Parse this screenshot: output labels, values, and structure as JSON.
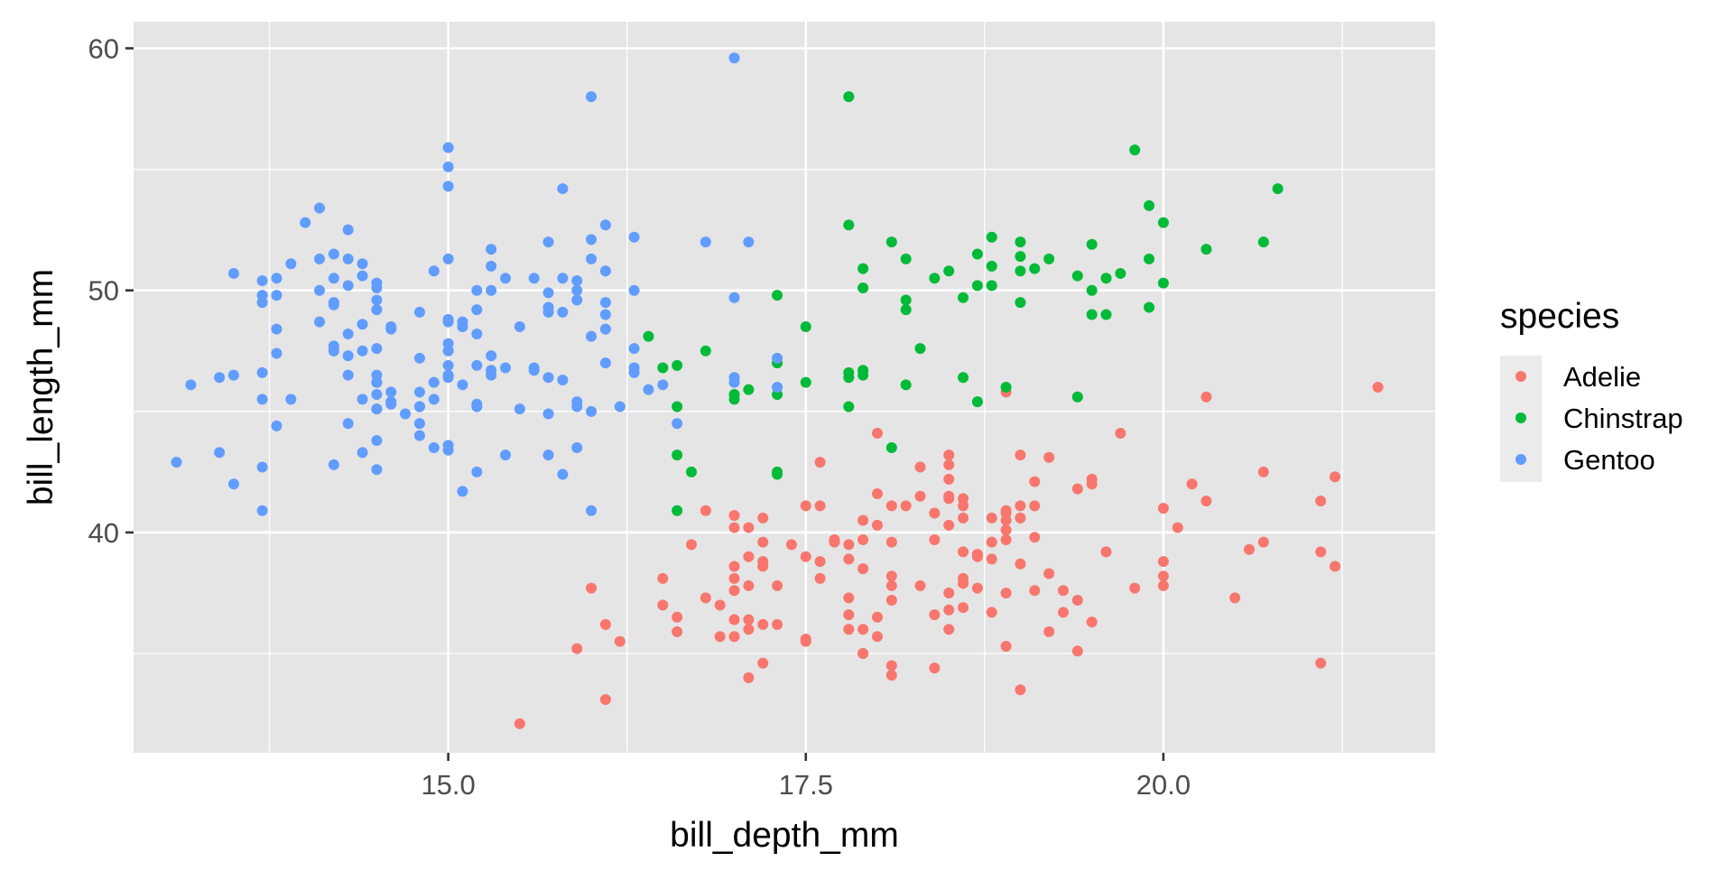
{
  "chart_data": {
    "type": "scatter",
    "title": "",
    "xlabel": "bill_depth_mm",
    "ylabel": "bill_length_mm",
    "xlim": [
      12.8,
      21.9
    ],
    "ylim": [
      30.9,
      61.1
    ],
    "x_ticks": [
      15.0,
      17.5,
      20.0
    ],
    "x_tick_labels": [
      "15.0",
      "17.5",
      "20.0"
    ],
    "y_ticks": [
      40,
      50,
      60
    ],
    "y_tick_labels": [
      "40",
      "50",
      "60"
    ],
    "grid": true,
    "panel_background": "#e5e5e5",
    "legend": {
      "title": "species",
      "position": "right"
    },
    "series": [
      {
        "name": "Adelie",
        "color": "#f8766d",
        "x": [
          18.7,
          17.4,
          18.0,
          19.3,
          20.6,
          17.8,
          19.6,
          18.1,
          20.2,
          17.1,
          17.3,
          17.6,
          21.2,
          21.1,
          17.8,
          19.0,
          20.7,
          18.4,
          21.5,
          18.3,
          18.7,
          19.2,
          18.1,
          17.2,
          18.9,
          18.6,
          17.9,
          18.6,
          18.9,
          16.7,
          18.1,
          17.8,
          18.9,
          17.0,
          21.1,
          20.0,
          18.5,
          19.3,
          19.1,
          18.0,
          18.4,
          18.5,
          19.7,
          16.9,
          18.8,
          19.0,
          18.9,
          17.9,
          21.2,
          17.7,
          18.9,
          17.9,
          19.5,
          18.1,
          18.6,
          17.5,
          18.8,
          16.6,
          19.1,
          16.9,
          21.1,
          17.0,
          18.2,
          17.1,
          18.0,
          16.2,
          19.1,
          16.6,
          19.4,
          19.0,
          18.4,
          17.2,
          18.9,
          17.5,
          18.5,
          16.8,
          19.4,
          16.1,
          19.1,
          17.2,
          17.6,
          18.8,
          19.4,
          17.8,
          20.3,
          19.5,
          18.6,
          19.2,
          18.8,
          18.0,
          18.1,
          17.1,
          18.1,
          17.3,
          18.9,
          18.6,
          18.5,
          16.1,
          18.5,
          17.9,
          20.0,
          16.0,
          20.0,
          18.6,
          18.9,
          17.2,
          20.0,
          17.0,
          19.0,
          16.5,
          20.3,
          17.7,
          19.5,
          20.7,
          18.3,
          17.0,
          20.5,
          17.0,
          18.6,
          17.2,
          19.8,
          17.0,
          18.5,
          15.9,
          19.0,
          17.6,
          18.3,
          17.1,
          18.0,
          17.9,
          19.2,
          18.5,
          18.5,
          17.6,
          17.5,
          17.5,
          20.1,
          16.5,
          17.9,
          17.1,
          17.2,
          15.5,
          17.0,
          16.8,
          18.7,
          18.6,
          18.4,
          17.8,
          18.1,
          17.1,
          18.5
        ],
        "y": [
          39.1,
          39.5,
          40.3,
          36.7,
          39.3,
          38.9,
          39.2,
          34.1,
          42.0,
          37.8,
          37.8,
          41.1,
          38.6,
          34.6,
          36.6,
          38.7,
          42.5,
          34.4,
          46.0,
          37.8,
          37.7,
          35.9,
          38.2,
          38.8,
          35.3,
          40.6,
          40.5,
          37.9,
          40.5,
          39.5,
          37.2,
          39.5,
          40.9,
          36.4,
          39.2,
          38.8,
          42.2,
          37.6,
          39.8,
          36.5,
          40.8,
          36.0,
          44.1,
          37.0,
          39.6,
          41.1,
          37.5,
          36.0,
          42.3,
          39.6,
          40.1,
          35.0,
          42.0,
          34.5,
          41.4,
          39.0,
          40.6,
          36.5,
          37.6,
          35.7,
          41.3,
          37.6,
          41.1,
          36.4,
          41.6,
          35.5,
          41.1,
          35.9,
          41.8,
          33.5,
          39.7,
          39.6,
          45.8,
          35.5,
          42.8,
          40.9,
          37.2,
          36.2,
          42.1,
          34.6,
          42.9,
          36.7,
          35.1,
          37.3,
          41.3,
          36.3,
          36.9,
          38.3,
          38.9,
          35.7,
          41.1,
          34.0,
          39.6,
          36.2,
          40.8,
          38.1,
          40.3,
          33.1,
          43.2,
          35.0,
          41.0,
          37.7,
          37.8,
          37.9,
          39.7,
          38.6,
          38.2,
          38.1,
          43.2,
          38.1,
          45.6,
          39.7,
          42.2,
          39.6,
          42.7,
          38.6,
          37.3,
          35.7,
          41.1,
          36.2,
          37.7,
          40.2,
          41.4,
          35.2,
          40.6,
          38.8,
          41.5,
          39.0,
          44.1,
          38.5,
          43.1,
          36.8,
          37.5,
          38.1,
          41.1,
          35.6,
          40.2,
          37.0,
          39.7,
          40.2,
          40.6,
          32.1,
          40.7,
          37.3,
          39.0,
          39.2,
          36.6,
          36.0,
          37.8,
          36.0,
          41.5
        ]
      },
      {
        "name": "Chinstrap",
        "color": "#00ba38",
        "x": [
          17.9,
          19.5,
          19.2,
          18.7,
          17.8,
          17.8,
          18.2,
          18.2,
          18.9,
          19.9,
          17.8,
          20.3,
          17.3,
          18.1,
          17.1,
          19.6,
          20.0,
          17.8,
          18.6,
          18.2,
          17.3,
          17.5,
          16.6,
          19.4,
          17.9,
          19.0,
          18.4,
          19.0,
          17.8,
          20.0,
          16.6,
          20.8,
          16.7,
          18.8,
          18.6,
          16.8,
          18.3,
          20.7,
          16.6,
          19.9,
          19.5,
          17.5,
          19.1,
          17.0,
          17.9,
          18.5,
          17.9,
          19.6,
          18.7,
          17.3,
          16.4,
          19.0,
          17.3,
          19.7,
          17.3,
          18.8,
          16.6,
          19.9,
          18.8,
          19.4,
          19.5,
          16.5,
          17.0,
          19.8,
          18.1,
          18.2,
          19.0,
          18.7
        ],
        "y": [
          46.5,
          50.0,
          51.3,
          45.4,
          52.7,
          45.2,
          46.1,
          51.3,
          46.0,
          51.3,
          46.6,
          51.7,
          47.0,
          52.0,
          45.9,
          50.5,
          50.3,
          58.0,
          46.4,
          49.2,
          42.4,
          48.5,
          43.2,
          50.6,
          46.7,
          52.0,
          50.5,
          49.5,
          46.4,
          52.8,
          40.9,
          54.2,
          42.5,
          51.0,
          49.7,
          47.5,
          47.6,
          52.0,
          46.9,
          53.5,
          49.0,
          46.2,
          50.9,
          45.5,
          50.9,
          50.8,
          50.1,
          49.0,
          51.5,
          49.8,
          48.1,
          51.4,
          45.7,
          50.7,
          42.5,
          52.2,
          45.2,
          49.3,
          50.2,
          45.6,
          51.9,
          46.8,
          45.7,
          55.8,
          43.5,
          49.6,
          50.8,
          50.2
        ]
      },
      {
        "name": "Gentoo",
        "color": "#619cff",
        "x": [
          13.2,
          16.3,
          14.1,
          15.2,
          14.5,
          13.5,
          14.6,
          15.3,
          13.4,
          15.4,
          13.7,
          16.1,
          13.7,
          14.6,
          14.6,
          15.7,
          13.5,
          15.2,
          14.5,
          15.1,
          14.3,
          14.5,
          14.5,
          15.8,
          13.1,
          15.1,
          14.3,
          15.0,
          14.3,
          15.3,
          15.3,
          14.2,
          14.5,
          17.0,
          14.8,
          16.1,
          14.5,
          13.8,
          14.8,
          15.0,
          13.7,
          14.5,
          14.6,
          15.9,
          13.8,
          15.0,
          13.9,
          15.6,
          14.7,
          15.9,
          13.7,
          14.6,
          15.5,
          14.5,
          15.0,
          16.0,
          14.5,
          14.4,
          15.4,
          13.7,
          15.2,
          14.5,
          14.5,
          15.0,
          14.8,
          13.8,
          14.9,
          14.2,
          15.9,
          13.5,
          14.2,
          13.4,
          15.2,
          14.3,
          15.7,
          14.4,
          14.4,
          14.4,
          15.2,
          14.8,
          15.8,
          14.3,
          13.8,
          14.1,
          15.7,
          14.9,
          15.0,
          14.1,
          14.2,
          16.0,
          14.2,
          16.3,
          14.9,
          13.7,
          14.8,
          16.1,
          14.2,
          15.2,
          13.8,
          13.9,
          15.5,
          15.0,
          14.8,
          15.7,
          14.3,
          16.3,
          15.1,
          14.1,
          14.4,
          16.0,
          15.4,
          13.7,
          14.9,
          14.2,
          17.0,
          15.0,
          16.6,
          15.0,
          17.3,
          15.6,
          15.9,
          16.2,
          15.7,
          15.3,
          15.9,
          16.0,
          15.9,
          16.1,
          14.8,
          16.5,
          14.3,
          17.3,
          15.0,
          16.3,
          15.3,
          16.1,
          17.1,
          16.4,
          15.8,
          14.5,
          16.0,
          15.0,
          14.5,
          15.8,
          15.1,
          15.7,
          14.4,
          15.6,
          15.7,
          14.2,
          16.1,
          17.0,
          14.0,
          16.0,
          15.8,
          15.2,
          15.3,
          17.0,
          15.0,
          16.3,
          16.8,
          15.0
        ],
        "y": [
          46.1,
          50.0,
          48.7,
          50.0,
          47.6,
          46.5,
          45.4,
          46.7,
          43.3,
          46.8,
          40.9,
          49.0,
          45.5,
          48.4,
          45.8,
          49.3,
          42.0,
          49.2,
          46.2,
          48.7,
          50.2,
          45.1,
          46.5,
          46.3,
          42.9,
          46.1,
          44.5,
          47.8,
          48.2,
          50.0,
          47.3,
          42.8,
          45.1,
          59.6,
          49.1,
          48.4,
          42.6,
          44.4,
          44.0,
          48.7,
          42.7,
          49.6,
          45.3,
          49.6,
          50.5,
          43.6,
          45.5,
          50.5,
          44.9,
          45.2,
          46.6,
          48.5,
          45.1,
          50.1,
          46.5,
          45.0,
          43.8,
          45.5,
          43.2,
          50.4,
          45.3,
          46.2,
          45.7,
          54.3,
          45.8,
          49.8,
          46.2,
          49.5,
          43.5,
          50.7,
          47.7,
          46.4,
          48.2,
          46.5,
          46.4,
          48.6,
          47.5,
          51.1,
          45.2,
          45.2,
          49.1,
          52.5,
          47.4,
          50.0,
          44.9,
          50.8,
          43.4,
          51.3,
          47.5,
          52.1,
          47.5,
          52.2,
          45.5,
          49.5,
          44.5,
          50.8,
          49.4,
          46.9,
          48.4,
          51.1,
          48.5,
          55.9,
          47.2,
          49.1,
          47.3,
          46.8,
          41.7,
          53.4,
          43.3,
          48.1,
          50.5,
          49.8,
          43.5,
          51.5,
          46.2,
          55.1,
          44.5,
          48.8,
          47.2,
          46.8,
          50.4,
          45.2,
          49.9,
          46.5,
          50.0,
          51.3,
          45.4,
          52.7,
          45.2,
          46.1,
          51.3,
          46.0,
          51.3,
          46.6,
          51.7,
          47.0,
          52.0,
          45.9,
          50.5,
          50.3,
          58.0,
          46.4,
          49.2,
          42.4,
          48.5,
          43.2,
          50.6,
          46.7,
          52.0,
          50.5,
          49.5,
          46.4,
          52.8,
          40.9,
          54.2,
          42.5,
          51.0,
          49.7,
          47.5,
          47.6,
          52.0,
          46.9
        ]
      }
    ]
  }
}
